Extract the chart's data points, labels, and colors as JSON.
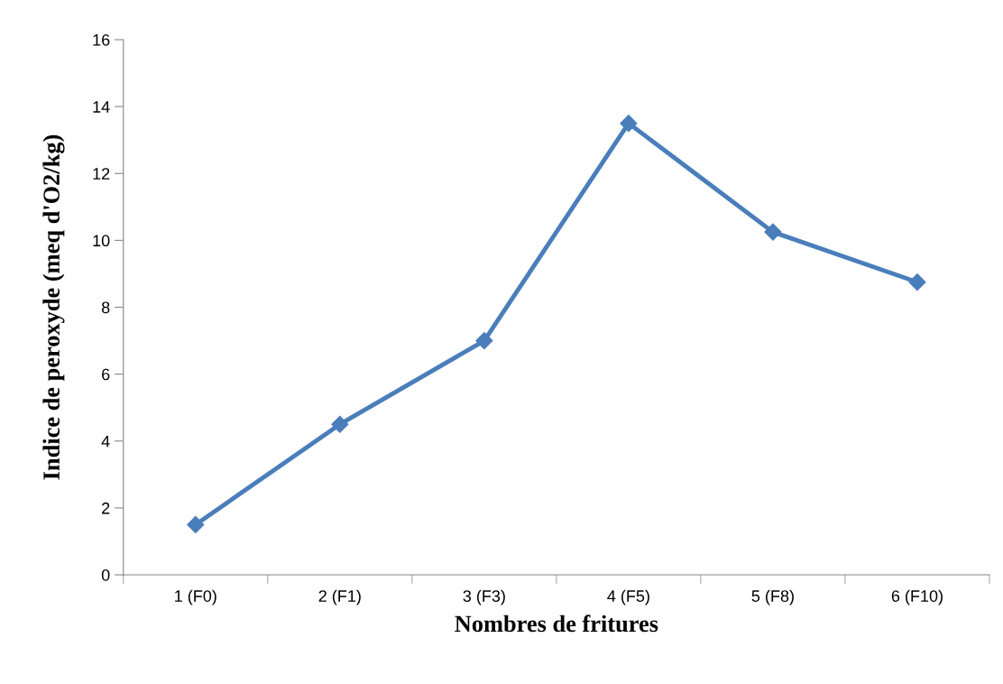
{
  "chart_data": {
    "type": "line",
    "xlabel": "Nombres de fritures",
    "ylabel": "Indice de peroxyde (meq d'O2/kg)",
    "categories": [
      "1 (F0)",
      "2 (F1)",
      "3 (F3)",
      "4 (F5)",
      "5 (F8)",
      "6 (F10)"
    ],
    "series": [
      {
        "color": "#4a7ebb",
        "values": [
          1.5,
          4.5,
          7,
          13.5,
          10.25,
          8.75
        ]
      }
    ],
    "ylim": [
      0,
      16
    ],
    "yticks": [
      0,
      2,
      4,
      6,
      8,
      10,
      12,
      14,
      16
    ],
    "grid": false,
    "marker": "diamond",
    "line_style": "solid"
  }
}
